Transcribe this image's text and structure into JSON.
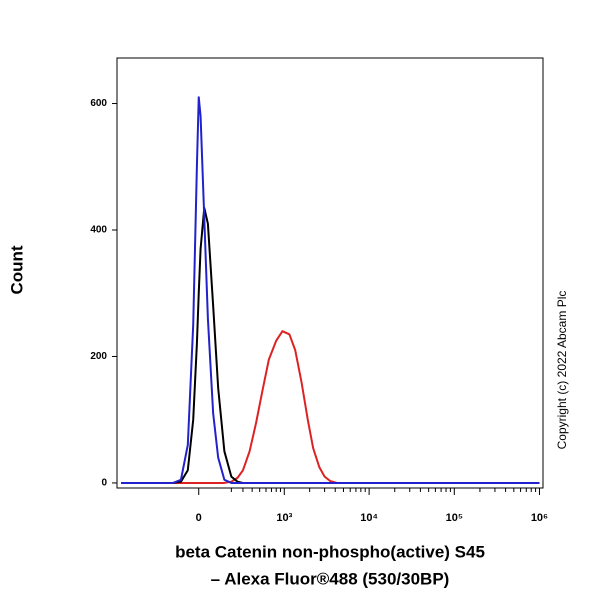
{
  "chart_data": {
    "type": "line",
    "y_label": "Count",
    "x_label": [
      "beta Catenin non-phospho(active) S45",
      "– Alexa Fluor®488 (530/30BP)"
    ],
    "annotation": "Copyright (c) 2022 Abcam Plc",
    "x_scale": "biexponential",
    "xlim": [
      -900,
      1100000
    ],
    "xticks": [
      0,
      {
        "value": 1000,
        "label": "10³"
      },
      {
        "value": 10000,
        "label": "10⁴"
      },
      {
        "value": 100000,
        "label": "10⁵"
      },
      {
        "value": 1000000,
        "label": "10⁶"
      }
    ],
    "ylim": [
      -8,
      672
    ],
    "yticks": [
      0,
      200,
      400,
      600
    ],
    "x": [
      -800,
      -300,
      -150,
      -100,
      -60,
      -30,
      -10,
      0,
      10,
      30,
      50,
      80,
      110,
      150,
      200,
      250,
      300,
      370,
      450,
      550,
      650,
      800,
      950,
      1150,
      1350,
      1600,
      1900,
      2200,
      2600,
      3000,
      3500,
      4200,
      5000,
      7000,
      20000,
      100000,
      1000000
    ],
    "series": [
      {
        "color": "#dd2222",
        "values": [
          0,
          0,
          0,
          0,
          0,
          0,
          0,
          0,
          0,
          0,
          0,
          0,
          0,
          0,
          2,
          8,
          20,
          50,
          95,
          150,
          195,
          225,
          240,
          235,
          210,
          160,
          100,
          55,
          25,
          10,
          3,
          0,
          0,
          0,
          0,
          0,
          0
        ]
      },
      {
        "color": "#000000",
        "values": [
          0,
          0,
          0,
          2,
          20,
          100,
          220,
          300,
          370,
          435,
          410,
          280,
          150,
          50,
          10,
          2,
          0,
          0,
          0,
          0,
          0,
          0,
          0,
          0,
          0,
          0,
          0,
          0,
          0,
          0,
          0,
          0,
          0,
          0,
          0,
          0,
          0
        ]
      },
      {
        "color": "#2222cc",
        "values": [
          0,
          0,
          0,
          5,
          60,
          250,
          500,
          610,
          580,
          420,
          260,
          110,
          40,
          5,
          0,
          0,
          0,
          0,
          0,
          0,
          0,
          0,
          0,
          0,
          0,
          0,
          0,
          0,
          0,
          0,
          0,
          0,
          0,
          0,
          0,
          0,
          0
        ]
      }
    ]
  }
}
